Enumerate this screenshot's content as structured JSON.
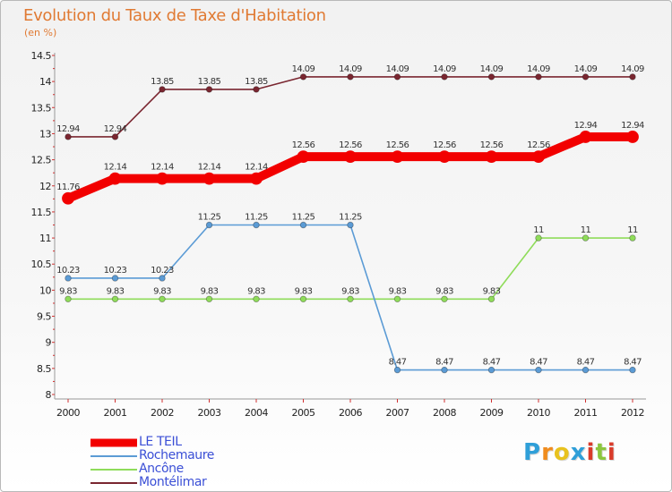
{
  "header": {
    "title": "Evolution du Taux de Taxe d'Habitation",
    "unit": "(en %)"
  },
  "logo": {
    "letters": [
      "P",
      "r",
      "o",
      "x",
      "i",
      "t",
      "i"
    ],
    "colors": [
      "#2f9fd8",
      "#f08c1e",
      "#e8c21e",
      "#2f9fd8",
      "#d93b2a",
      "#8cc63e",
      "#d93b2a"
    ]
  },
  "chart_data": {
    "type": "line",
    "x": [
      2000,
      2001,
      2002,
      2003,
      2004,
      2005,
      2006,
      2007,
      2008,
      2009,
      2010,
      2011,
      2012
    ],
    "ylim": [
      8,
      14.5
    ],
    "yticks": [
      "8",
      "8.5",
      "9",
      "9.5",
      "10",
      "10.5",
      "11",
      "11.5",
      "12",
      "12.5",
      "13",
      "13.5",
      "14",
      "14.5"
    ],
    "xlabel": "",
    "ylabel": "",
    "grid": false,
    "legend_position": "bottom-left",
    "series": [
      {
        "name": "LE TEIL",
        "color": "#f20000",
        "emphasis": true,
        "values": [
          11.76,
          12.14,
          12.14,
          12.14,
          12.14,
          12.56,
          12.56,
          12.56,
          12.56,
          12.56,
          12.56,
          12.94,
          12.94
        ],
        "labels": [
          "11.76",
          "12.14",
          "12.14",
          "12.14",
          "12.14",
          "12.56",
          "12.56",
          "12.56",
          "12.56",
          "12.56",
          "12.56",
          "12.94",
          "12.94"
        ]
      },
      {
        "name": "Rochemaure",
        "color": "#5b9bd5",
        "values": [
          10.23,
          10.23,
          10.23,
          11.25,
          11.25,
          11.25,
          11.25,
          8.47,
          8.47,
          8.47,
          8.47,
          8.47,
          8.47
        ],
        "labels": [
          "10.23",
          "10.23",
          "10.23",
          "11.25",
          "11.25",
          "11.25",
          "11.25",
          "8.47",
          "8.47",
          "8.47",
          "8.47",
          "8.47",
          "8.47"
        ]
      },
      {
        "name": "Ancône",
        "color": "#8fdc5a",
        "values": [
          9.83,
          9.83,
          9.83,
          9.83,
          9.83,
          9.83,
          9.83,
          9.83,
          9.83,
          9.83,
          11,
          11,
          11
        ],
        "labels": [
          "9.83",
          "9.83",
          "9.83",
          "9.83",
          "9.83",
          "9.83",
          "9.83",
          "9.83",
          "9.83",
          "9.83",
          "11",
          "11",
          "11"
        ]
      },
      {
        "name": "Montélimar",
        "color": "#7a2630",
        "values": [
          12.94,
          12.94,
          13.85,
          13.85,
          13.85,
          14.09,
          14.09,
          14.09,
          14.09,
          14.09,
          14.09,
          14.09,
          14.09
        ],
        "labels": [
          "12.94",
          "12.94",
          "13.85",
          "13.85",
          "13.85",
          "14.09",
          "14.09",
          "14.09",
          "14.09",
          "14.09",
          "14.09",
          "14.09",
          "14.09"
        ]
      }
    ]
  }
}
